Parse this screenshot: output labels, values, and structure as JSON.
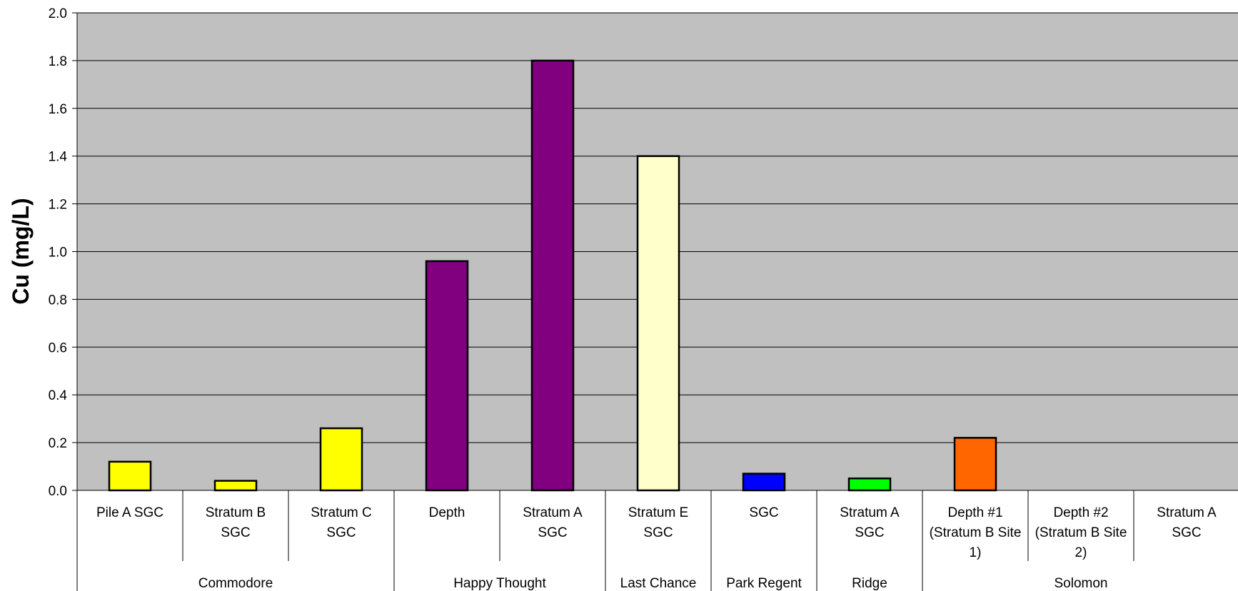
{
  "chart_data": {
    "type": "bar",
    "ylabel": "Cu (mg/L)",
    "ylim": [
      0,
      2.0
    ],
    "yticks": [
      "0.0",
      "0.2",
      "0.4",
      "0.6",
      "0.8",
      "1.0",
      "1.2",
      "1.4",
      "1.6",
      "1.8",
      "2.0"
    ],
    "grid": true,
    "legend": "none",
    "categories": [
      {
        "lines": [
          "Pile A SGC"
        ],
        "group": "Commodore",
        "value": 0.12,
        "color": "#FFFF00"
      },
      {
        "lines": [
          "Stratum B",
          "SGC"
        ],
        "group": "Commodore",
        "value": 0.04,
        "color": "#FFFF00"
      },
      {
        "lines": [
          "Stratum C",
          "SGC"
        ],
        "group": "Commodore",
        "value": 0.26,
        "color": "#FFFF00"
      },
      {
        "lines": [
          "Depth"
        ],
        "group": "Happy Thought",
        "value": 0.96,
        "color": "#800080"
      },
      {
        "lines": [
          "Stratum A",
          "SGC"
        ],
        "group": "Happy Thought",
        "value": 1.8,
        "color": "#800080"
      },
      {
        "lines": [
          "Stratum E",
          "SGC"
        ],
        "group": "Last Chance",
        "value": 1.4,
        "color": "#FFFFCC"
      },
      {
        "lines": [
          "SGC"
        ],
        "group": "Park Regent",
        "value": 0.07,
        "color": "#0000FF"
      },
      {
        "lines": [
          "Stratum A",
          "SGC"
        ],
        "group": "Ridge",
        "value": 0.05,
        "color": "#00FF00"
      },
      {
        "lines": [
          "Depth #1",
          "(Stratum B Site",
          "1)"
        ],
        "group": "Solomon",
        "value": 0.22,
        "color": "#FF6600"
      },
      {
        "lines": [
          "Depth #2",
          "(Stratum B Site",
          "2)"
        ],
        "group": "Solomon",
        "value": null,
        "color": "#FF6600"
      },
      {
        "lines": [
          "Stratum A",
          "SGC"
        ],
        "group": "Solomon",
        "value": null,
        "color": "#FF6600"
      }
    ],
    "groups": [
      "Commodore",
      "Happy Thought",
      "Last Chance",
      "Park Regent",
      "Ridge",
      "Solomon"
    ]
  },
  "colors": {
    "plot_background": "#C0C0C0",
    "gridline": "#000000",
    "bar_outline": "#000000"
  }
}
